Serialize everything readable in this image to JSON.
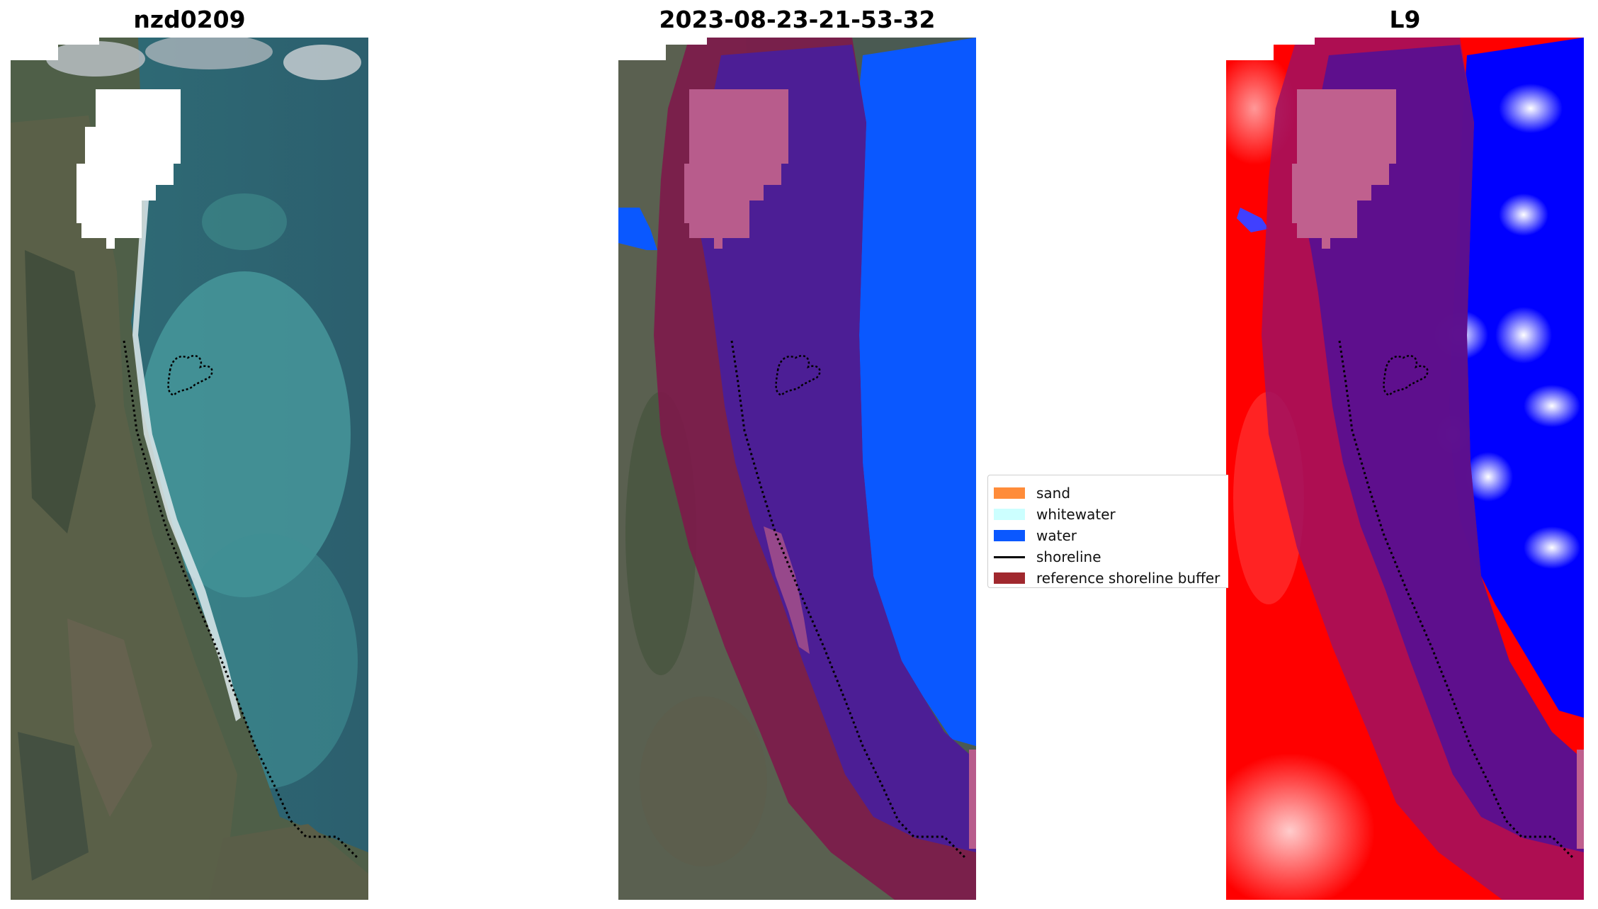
{
  "panels": [
    {
      "title": "nzd0209"
    },
    {
      "title": "2023-08-23-21-53-32"
    },
    {
      "title": "L9"
    }
  ],
  "legend": {
    "items": [
      {
        "label": "sand",
        "color": "#ff8c3a",
        "kind": "patch"
      },
      {
        "label": "whitewater",
        "color": "#ccffff",
        "kind": "patch"
      },
      {
        "label": "water",
        "color": "#0a58ff",
        "kind": "patch"
      },
      {
        "label": "shoreline",
        "color": "#000000",
        "kind": "line"
      },
      {
        "label": "reference shoreline buffer",
        "color": "#a0282e",
        "kind": "patch"
      }
    ]
  },
  "colors": {
    "land": "#4a5a46",
    "ocean": "#2f6b78",
    "shallow_water": "#4c9ea0",
    "cloud_mask": "#ffffff",
    "water_class": "#0a58ff",
    "buffer_overlay": "#8a1a4a",
    "buffer_over_water": "#4b1e96",
    "mndwi_land": "#ff0000",
    "mndwi_water": "#0000ff"
  }
}
